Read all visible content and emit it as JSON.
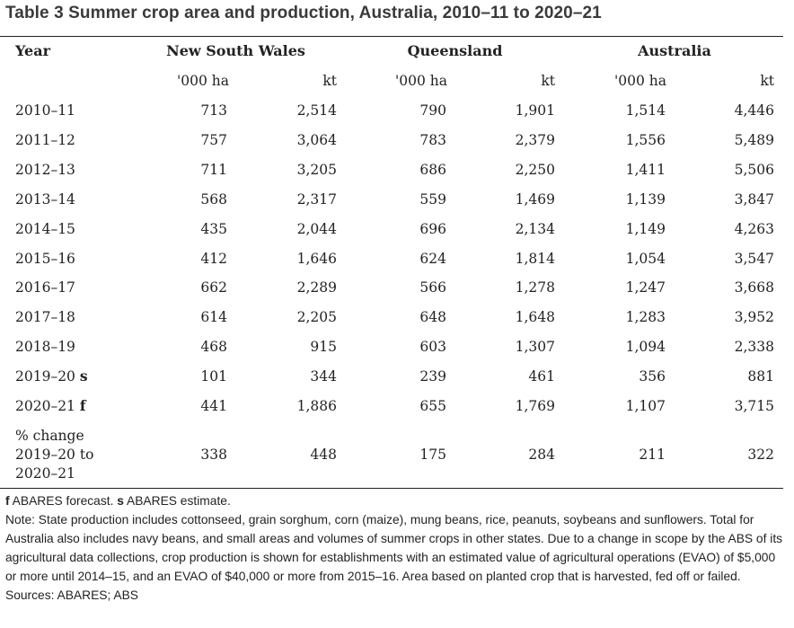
{
  "title": "Table 3 Summer crop area and production, Australia, 2010–11 to 2020–21",
  "header": {
    "year": "Year",
    "nsw": "New South Wales",
    "qld": "Queensland",
    "aus": "Australia",
    "unit_ha": "'000 ha",
    "unit_kt": "kt"
  },
  "rows": [
    {
      "year": "2010–11",
      "suffix": "",
      "nsw_ha": "713",
      "nsw_kt": "2,514",
      "qld_ha": "790",
      "qld_kt": "1,901",
      "aus_ha": "1,514",
      "aus_kt": "4,446"
    },
    {
      "year": "2011–12",
      "suffix": "",
      "nsw_ha": "757",
      "nsw_kt": "3,064",
      "qld_ha": "783",
      "qld_kt": "2,379",
      "aus_ha": "1,556",
      "aus_kt": "5,489"
    },
    {
      "year": "2012–13",
      "suffix": "",
      "nsw_ha": "711",
      "nsw_kt": "3,205",
      "qld_ha": "686",
      "qld_kt": "2,250",
      "aus_ha": "1,411",
      "aus_kt": "5,506"
    },
    {
      "year": "2013–14",
      "suffix": "",
      "nsw_ha": "568",
      "nsw_kt": "2,317",
      "qld_ha": "559",
      "qld_kt": "1,469",
      "aus_ha": "1,139",
      "aus_kt": "3,847"
    },
    {
      "year": "2014–15",
      "suffix": "",
      "nsw_ha": "435",
      "nsw_kt": "2,044",
      "qld_ha": "696",
      "qld_kt": "2,134",
      "aus_ha": "1,149",
      "aus_kt": "4,263"
    },
    {
      "year": "2015–16",
      "suffix": "",
      "nsw_ha": "412",
      "nsw_kt": "1,646",
      "qld_ha": "624",
      "qld_kt": "1,814",
      "aus_ha": "1,054",
      "aus_kt": "3,547"
    },
    {
      "year": "2016–17",
      "suffix": "",
      "nsw_ha": "662",
      "nsw_kt": "2,289",
      "qld_ha": "566",
      "qld_kt": "1,278",
      "aus_ha": "1,247",
      "aus_kt": "3,668"
    },
    {
      "year": "2017–18",
      "suffix": "",
      "nsw_ha": "614",
      "nsw_kt": "2,205",
      "qld_ha": "648",
      "qld_kt": "1,648",
      "aus_ha": "1,283",
      "aus_kt": "3,952"
    },
    {
      "year": "2018–19",
      "suffix": "",
      "nsw_ha": "468",
      "nsw_kt": "915",
      "qld_ha": "603",
      "qld_kt": "1,307",
      "aus_ha": "1,094",
      "aus_kt": "2,338"
    },
    {
      "year": "2019–20",
      "suffix": "s",
      "nsw_ha": "101",
      "nsw_kt": "344",
      "qld_ha": "239",
      "qld_kt": "461",
      "aus_ha": "356",
      "aus_kt": "881"
    },
    {
      "year": "2020–21",
      "suffix": "f",
      "nsw_ha": "441",
      "nsw_kt": "1,886",
      "qld_ha": "655",
      "qld_kt": "1,769",
      "aus_ha": "1,107",
      "aus_kt": "3,715"
    }
  ],
  "change_row": {
    "label_lines": [
      "% change",
      "2019–20 to",
      "2020–21"
    ],
    "nsw_ha": "338",
    "nsw_kt": "448",
    "qld_ha": "175",
    "qld_kt": "284",
    "aus_ha": "211",
    "aus_kt": "322"
  },
  "notes": {
    "forecast_key": "f",
    "forecast_text": " ABARES forecast. ",
    "estimate_key": "s",
    "estimate_text": " ABARES estimate.",
    "note": "Note: State production includes cottonseed, grain sorghum, corn (maize), mung beans, rice, peanuts, soybeans and sunflowers. Total for Australia also includes navy beans, and small areas and volumes of summer crops in other states. Due to a change in scope by the ABS of its agricultural data collections, crop production is shown for establishments with an estimated value of agricultural operations (EVAO) of $5,000 or more until 2014–15, and an EVAO of $40,000 or more from 2015–16. Area based on planted crop that is harvested, fed off or failed.",
    "sources": "Sources: ABARES; ABS"
  }
}
